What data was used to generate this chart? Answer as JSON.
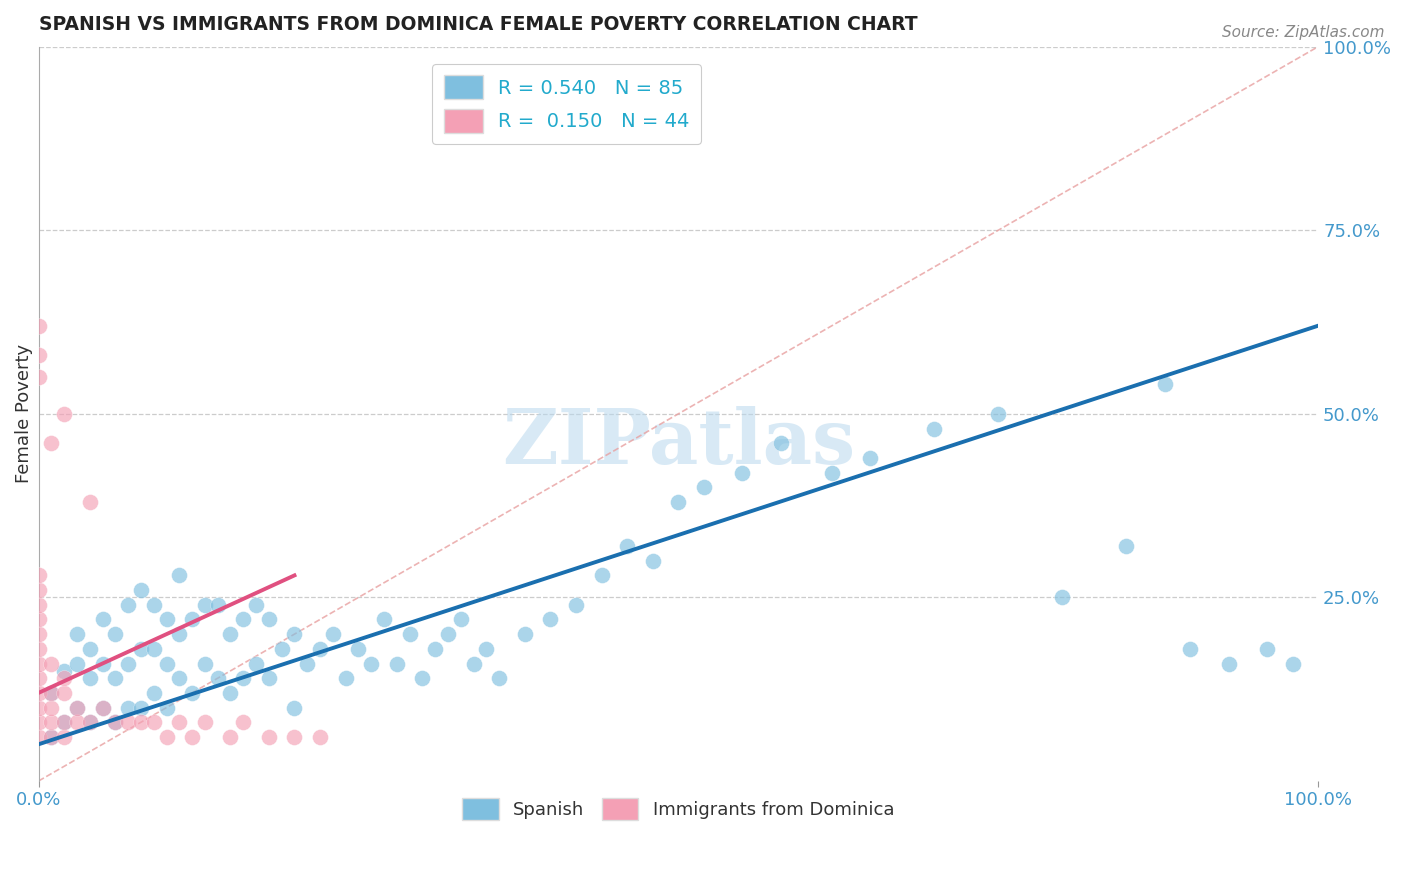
{
  "title": "SPANISH VS IMMIGRANTS FROM DOMINICA FEMALE POVERTY CORRELATION CHART",
  "source": "Source: ZipAtlas.com",
  "ylabel": "Female Poverty",
  "xlim": [
    0,
    1
  ],
  "ylim": [
    0,
    1
  ],
  "xtick_labels": [
    "0.0%",
    "100.0%"
  ],
  "ytick_right_labels": [
    "25.0%",
    "50.0%",
    "75.0%",
    "100.0%"
  ],
  "ytick_right_positions": [
    0.25,
    0.5,
    0.75,
    1.0
  ],
  "legend1_R": "0.540",
  "legend1_N": "85",
  "legend2_R": "0.150",
  "legend2_N": "44",
  "blue_color": "#7fbfdf",
  "pink_color": "#f4a0b5",
  "blue_line_color": "#1a6faf",
  "pink_line_color": "#e05080",
  "watermark_text": "ZIPatlas",
  "blue_line_x0": 0.0,
  "blue_line_y0": 0.05,
  "blue_line_x1": 1.0,
  "blue_line_y1": 0.62,
  "pink_line_x0": 0.0,
  "pink_line_y0": 0.12,
  "pink_line_x1": 0.2,
  "pink_line_y1": 0.28,
  "blue_points_x": [
    0.01,
    0.01,
    0.02,
    0.02,
    0.03,
    0.03,
    0.03,
    0.04,
    0.04,
    0.04,
    0.05,
    0.05,
    0.05,
    0.06,
    0.06,
    0.06,
    0.07,
    0.07,
    0.07,
    0.08,
    0.08,
    0.08,
    0.09,
    0.09,
    0.09,
    0.1,
    0.1,
    0.1,
    0.11,
    0.11,
    0.11,
    0.12,
    0.12,
    0.13,
    0.13,
    0.14,
    0.14,
    0.15,
    0.15,
    0.16,
    0.16,
    0.17,
    0.17,
    0.18,
    0.18,
    0.19,
    0.2,
    0.2,
    0.21,
    0.22,
    0.23,
    0.24,
    0.25,
    0.26,
    0.27,
    0.28,
    0.29,
    0.3,
    0.31,
    0.32,
    0.33,
    0.34,
    0.35,
    0.36,
    0.38,
    0.4,
    0.42,
    0.44,
    0.46,
    0.48,
    0.5,
    0.52,
    0.55,
    0.58,
    0.62,
    0.65,
    0.7,
    0.75,
    0.8,
    0.85,
    0.88,
    0.9,
    0.93,
    0.96,
    0.98
  ],
  "blue_points_y": [
    0.06,
    0.12,
    0.08,
    0.15,
    0.1,
    0.16,
    0.2,
    0.08,
    0.14,
    0.18,
    0.1,
    0.16,
    0.22,
    0.08,
    0.14,
    0.2,
    0.1,
    0.16,
    0.24,
    0.1,
    0.18,
    0.26,
    0.12,
    0.18,
    0.24,
    0.1,
    0.16,
    0.22,
    0.14,
    0.2,
    0.28,
    0.12,
    0.22,
    0.16,
    0.24,
    0.14,
    0.24,
    0.12,
    0.2,
    0.14,
    0.22,
    0.16,
    0.24,
    0.14,
    0.22,
    0.18,
    0.1,
    0.2,
    0.16,
    0.18,
    0.2,
    0.14,
    0.18,
    0.16,
    0.22,
    0.16,
    0.2,
    0.14,
    0.18,
    0.2,
    0.22,
    0.16,
    0.18,
    0.14,
    0.2,
    0.22,
    0.24,
    0.28,
    0.32,
    0.3,
    0.38,
    0.4,
    0.42,
    0.46,
    0.42,
    0.44,
    0.48,
    0.5,
    0.25,
    0.32,
    0.54,
    0.18,
    0.16,
    0.18,
    0.16
  ],
  "pink_points_x": [
    0.0,
    0.0,
    0.0,
    0.0,
    0.0,
    0.0,
    0.0,
    0.0,
    0.0,
    0.0,
    0.0,
    0.0,
    0.0,
    0.0,
    0.0,
    0.01,
    0.01,
    0.01,
    0.01,
    0.01,
    0.01,
    0.02,
    0.02,
    0.02,
    0.02,
    0.02,
    0.03,
    0.03,
    0.04,
    0.04,
    0.05,
    0.06,
    0.07,
    0.08,
    0.09,
    0.1,
    0.11,
    0.12,
    0.13,
    0.15,
    0.16,
    0.18,
    0.2,
    0.22
  ],
  "pink_points_y": [
    0.06,
    0.08,
    0.1,
    0.12,
    0.14,
    0.16,
    0.18,
    0.2,
    0.22,
    0.24,
    0.26,
    0.28,
    0.55,
    0.58,
    0.62,
    0.06,
    0.08,
    0.1,
    0.12,
    0.16,
    0.46,
    0.06,
    0.08,
    0.12,
    0.14,
    0.5,
    0.08,
    0.1,
    0.08,
    0.38,
    0.1,
    0.08,
    0.08,
    0.08,
    0.08,
    0.06,
    0.08,
    0.06,
    0.08,
    0.06,
    0.08,
    0.06,
    0.06,
    0.06
  ]
}
